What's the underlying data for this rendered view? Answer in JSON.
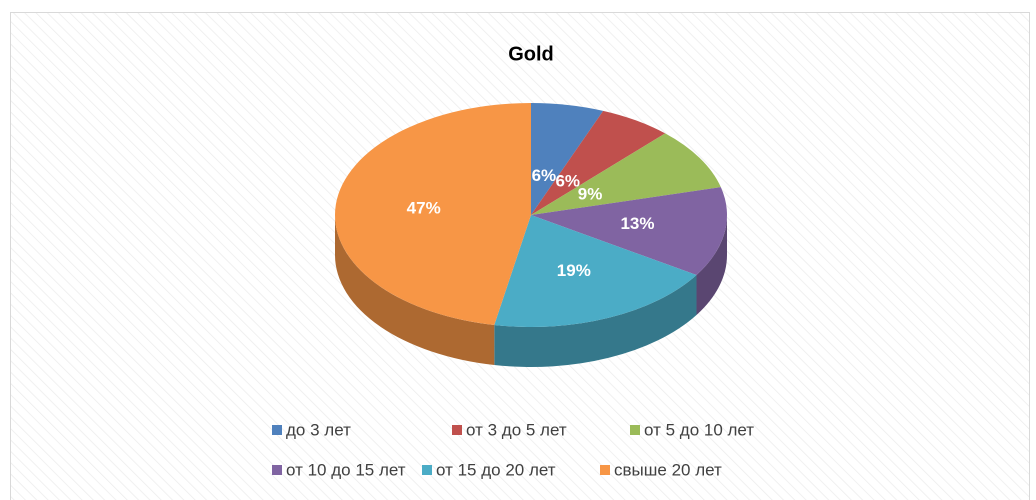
{
  "chart_data": {
    "type": "pie",
    "title": "Gold",
    "categories": [
      "до 3 лет",
      "от 3 до 5 лет",
      "от 5 до 10 лет",
      "от 10 до 15 лет",
      "от 15 до 20 лет",
      "свыше 20 лет"
    ],
    "values": [
      6,
      6,
      9,
      13,
      19,
      47
    ],
    "value_labels": [
      "6%",
      "6%",
      "9%",
      "13%",
      "19%",
      "47%"
    ],
    "colors": [
      "#4f81bd",
      "#c0504d",
      "#9bbb59",
      "#8064a2",
      "#4bacc6",
      "#f79646"
    ]
  }
}
